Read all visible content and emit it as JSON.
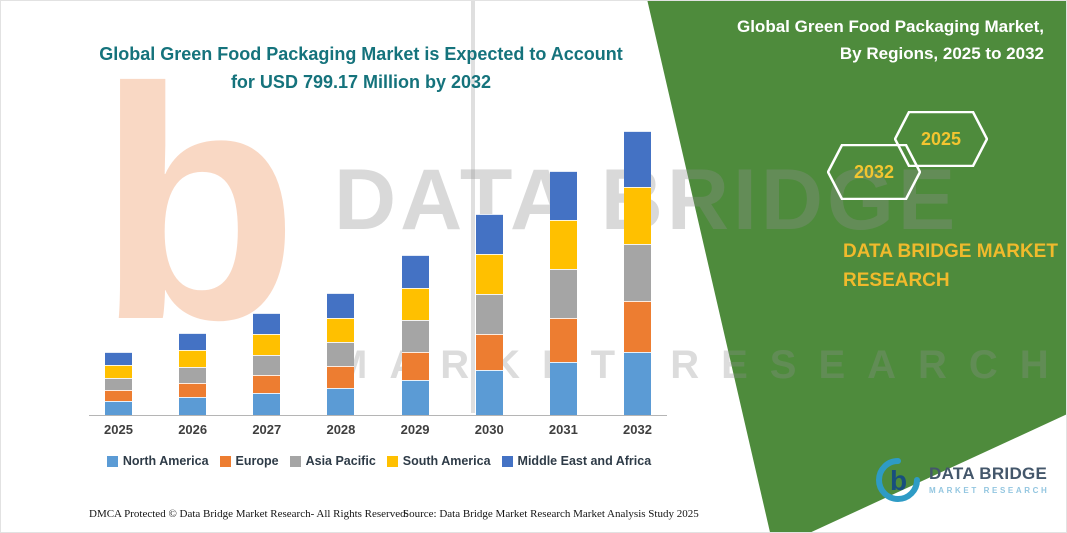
{
  "page": {
    "left_title": {
      "line1": "Global Green Food Packaging Market is Expected to Account",
      "line2": "for USD 799.17 Million by 2032"
    },
    "right_panel": {
      "title_line1": "Global Green Food Packaging Market,",
      "title_line2": "By Regions, 2025 to 2032",
      "badges": [
        "2032",
        "2025"
      ],
      "brand_text": "DATA BRIDGE MARKET RESEARCH",
      "panel_color": "#4E8B3C",
      "badge_text_color": "#F3C530"
    },
    "watermark": {
      "logo_glyph": "b",
      "line1": "DATA BRIDGE",
      "line2": "MARKET RESEARCH"
    },
    "footer": {
      "dmca": "DMCA Protected © Data Bridge Market Research-  All Rights Reserved.",
      "source": "Source: Data Bridge Market Research  Market Analysis Study 2025"
    },
    "logo": {
      "glyph": "b",
      "name": "DATA BRIDGE",
      "subtext": "MARKET RESEARCH"
    }
  },
  "chart_data": {
    "type": "bar",
    "stacked": true,
    "title": "Global Green Food Packaging Market is Expected to Account for USD 799.17 Million by 2032",
    "value_note": "USD Million, values estimated from bar heights; 2032 total = 799.17 per title",
    "categories": [
      "2025",
      "2026",
      "2027",
      "2028",
      "2029",
      "2030",
      "2031",
      "2032"
    ],
    "series": [
      {
        "name": "North America",
        "color": "#5B9BD5",
        "values": [
          40,
          51,
          63,
          77,
          100,
          126,
          151,
          177
        ]
      },
      {
        "name": "Europe",
        "color": "#ED7D31",
        "values": [
          31,
          40,
          51,
          63,
          80,
          103,
          123,
          143
        ]
      },
      {
        "name": "Asia Pacific",
        "color": "#A5A5A5",
        "values": [
          34,
          46,
          57,
          68,
          91,
          114,
          137,
          160
        ]
      },
      {
        "name": "South America",
        "color": "#FFC000",
        "values": [
          37,
          48,
          60,
          69,
          91,
          114,
          137,
          160
        ]
      },
      {
        "name": "Middle East and Africa",
        "color": "#4472C4",
        "values": [
          37,
          49,
          60,
          71,
          94,
          114,
          137,
          159.17
        ]
      }
    ],
    "totals": [
      179,
      234,
      291,
      348,
      456,
      571,
      685,
      799.17
    ],
    "ylim": [
      0,
      800
    ],
    "grid": false,
    "y_axis_shown": false,
    "legend_position": "bottom"
  }
}
